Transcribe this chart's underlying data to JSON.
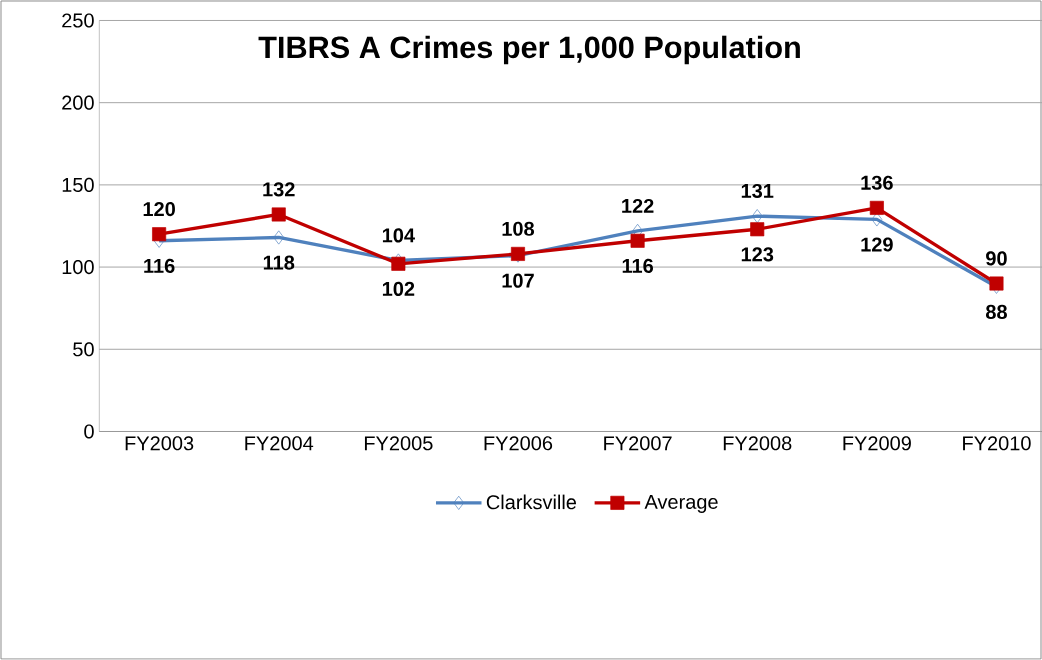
{
  "chart_data": {
    "type": "line",
    "title": "TIBRS A Crimes per 1,000 Population",
    "categories": [
      "FY2003",
      "FY2004",
      "FY2005",
      "FY2006",
      "FY2007",
      "FY2008",
      "FY2009",
      "FY2010"
    ],
    "series": [
      {
        "name": "Clarksville",
        "color": "#4f81bd",
        "marker": "diamond",
        "values": [
          116,
          118,
          104,
          107,
          122,
          131,
          129,
          88
        ]
      },
      {
        "name": "Average",
        "color": "#c00000",
        "marker": "square",
        "values": [
          120,
          132,
          102,
          108,
          116,
          123,
          136,
          90
        ]
      }
    ],
    "ylim": [
      0,
      250
    ],
    "yticks": [
      0,
      50,
      100,
      150,
      200,
      250
    ],
    "grid": "y",
    "legend": "bottom",
    "data_labels": true,
    "line_style": "solid"
  }
}
